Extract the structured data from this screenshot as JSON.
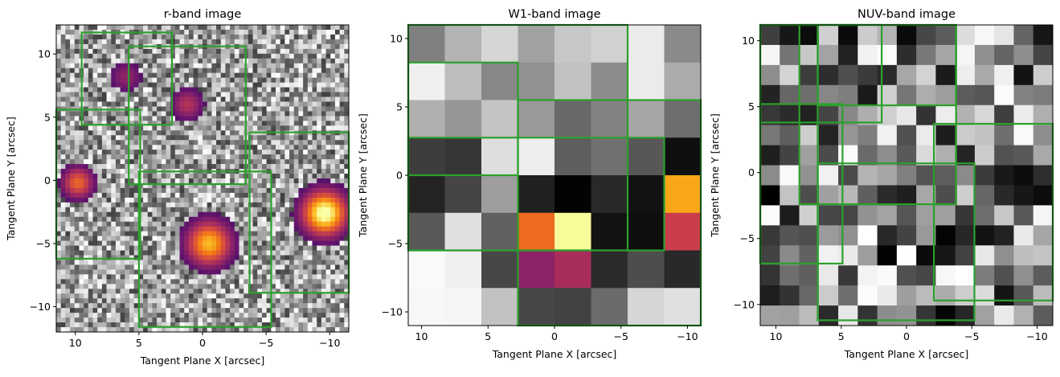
{
  "chart_data": [
    {
      "type": "heatmap",
      "title": "r-band image",
      "xlabel": "Tangent Plane X [arcsec]",
      "ylabel": "Tangent Plane Y [arcsec]",
      "xlim": [
        11.5,
        -11.5
      ],
      "ylim": [
        -12,
        12.3
      ],
      "xticks": [
        10,
        5,
        0,
        -5,
        -10
      ],
      "yticks": [
        10,
        5,
        0,
        -5,
        -10
      ],
      "pixel_grid": [
        64,
        64
      ],
      "colormap": "inferno (bright sources) over gray noise",
      "sources": [
        {
          "x": 9.8,
          "y": -0.2,
          "peak": 0.6
        },
        {
          "x": 6.0,
          "y": 8.2,
          "peak": 0.3
        },
        {
          "x": 1.2,
          "y": 6.0,
          "peak": 0.4
        },
        {
          "x": -0.5,
          "y": -5.0,
          "peak": 0.8
        },
        {
          "x": -9.6,
          "y": -2.6,
          "peak": 1.0
        }
      ],
      "boxes": [
        {
          "x": [
            2.4,
            9.5
          ],
          "y": [
            4.4,
            11.7
          ]
        },
        {
          "x": [
            -3.4,
            5.8
          ],
          "y": [
            -0.3,
            10.6
          ]
        },
        {
          "x": [
            4.9,
            11.5
          ],
          "y": [
            -6.2,
            5.6
          ]
        },
        {
          "x": [
            -5.4,
            5.0
          ],
          "y": [
            -11.6,
            0.7
          ]
        },
        {
          "x": [
            -11.5,
            -3.7
          ],
          "y": [
            -8.9,
            3.8
          ]
        }
      ]
    },
    {
      "type": "heatmap",
      "title": "W1-band image",
      "xlabel": "Tangent Plane X [arcsec]",
      "ylabel": "Tangent Plane Y [arcsec]",
      "xlim": [
        11.0,
        -11.0
      ],
      "ylim": [
        -11.0,
        11.0
      ],
      "xticks": [
        10,
        5,
        0,
        -5,
        -10
      ],
      "yticks": [
        10,
        5,
        0,
        -5,
        -10
      ],
      "colormap": "gray with inferno for bright pixels",
      "pixels": [
        [
          0.5,
          0.7,
          0.84,
          0.63,
          0.78,
          0.82,
          0.92,
          0.54
        ],
        [
          0.94,
          0.74,
          0.53,
          0.57,
          0.76,
          0.55,
          0.92,
          0.67
        ],
        [
          0.69,
          0.59,
          0.77,
          0.6,
          0.41,
          0.51,
          0.65,
          0.43
        ],
        [
          0.24,
          0.21,
          0.87,
          0.93,
          0.37,
          0.44,
          0.34,
          0.06
        ],
        [
          0.14,
          0.27,
          0.62,
          0.13,
          0.01,
          0.16,
          0.07,
          0.8
        ],
        [
          0.35,
          0.88,
          0.38,
          0.88,
          1.0,
          0.07,
          0.06,
          0.74
        ],
        [
          0.98,
          0.94,
          0.28,
          0.6,
          0.62,
          0.17,
          0.3,
          0.16
        ],
        [
          0.97,
          0.96,
          0.76,
          0.28,
          0.26,
          0.42,
          0.84,
          0.88
        ]
      ],
      "boxes": [
        {
          "x": [
            -5.5,
            11.0
          ],
          "y": [
            -5.5,
            11.0
          ]
        },
        {
          "x": [
            2.75,
            11.0
          ],
          "y": [
            0.0,
            8.25
          ]
        },
        {
          "x": [
            -11.0,
            2.75
          ],
          "y": [
            -11.0,
            5.5
          ]
        },
        {
          "x": [
            -8.25,
            11.0
          ],
          "y": [
            -5.5,
            2.75
          ]
        }
      ]
    },
    {
      "type": "heatmap",
      "title": "NUV-band image",
      "xlabel": "Tangent Plane X [arcsec]",
      "ylabel": "Tangent Plane Y [arcsec]",
      "xlim": [
        11.2,
        -11.2
      ],
      "ylim": [
        -11.6,
        11.2
      ],
      "xticks": [
        10,
        5,
        0,
        -5,
        -10
      ],
      "yticks": [
        10,
        5,
        0,
        -5,
        -10
      ],
      "pixel_grid": [
        15,
        15
      ],
      "colormap": "gray",
      "boxes": [
        {
          "x": [
            -3.8,
            6.8
          ],
          "y": [
            5.1,
            11.2
          ]
        },
        {
          "x": [
            6.8,
            11.2
          ],
          "y": [
            -6.9,
            11.2
          ]
        },
        {
          "x": [
            1.9,
            11.2
          ],
          "y": [
            3.8,
            11.2
          ]
        },
        {
          "x": [
            -3.8,
            8.2
          ],
          "y": [
            -2.4,
            11.2
          ]
        },
        {
          "x": [
            -11.2,
            -2.1
          ],
          "y": [
            -9.7,
            3.7
          ]
        },
        {
          "x": [
            -5.2,
            6.8
          ],
          "y": [
            -11.2,
            0.7
          ]
        },
        {
          "x": [
            4.9,
            11.2
          ],
          "y": [
            -6.9,
            5.2
          ]
        }
      ]
    }
  ]
}
